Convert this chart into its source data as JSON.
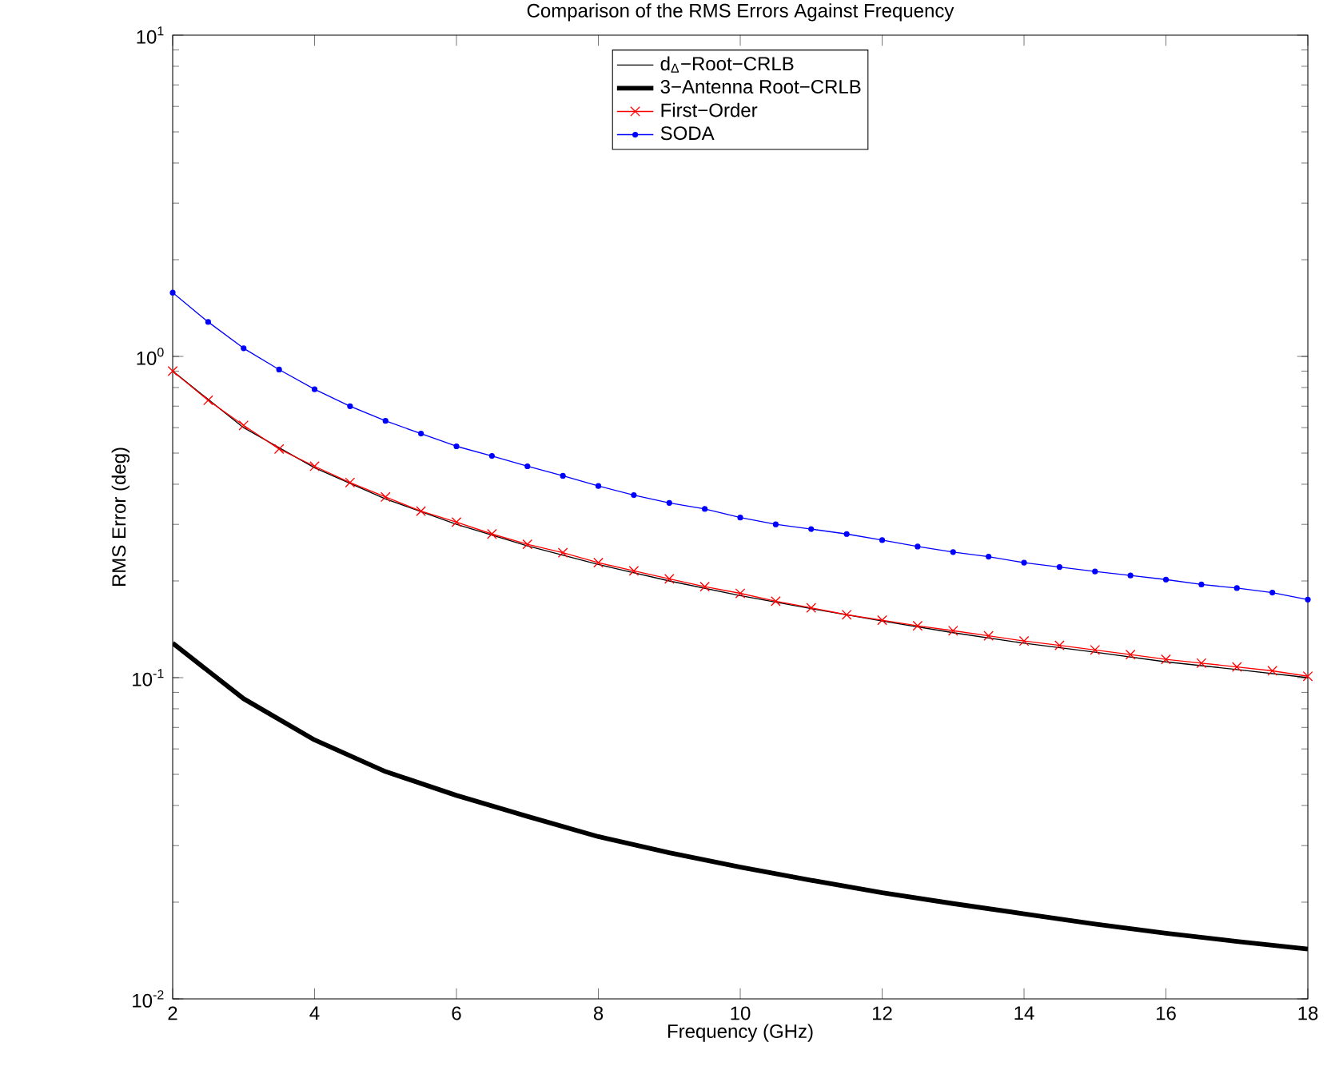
{
  "chart_data": {
    "type": "line",
    "title": "Comparison of the RMS Errors Against Frequency",
    "xlabel": "Frequency (GHz)",
    "ylabel": "RMS Error (deg)",
    "log": "y",
    "grid": false,
    "legend": "top",
    "xlim": [
      2,
      18
    ],
    "xticks": [
      2,
      4,
      6,
      8,
      10,
      12,
      14,
      16,
      18
    ],
    "ylim": [
      0.01,
      10
    ],
    "yticks": [
      {
        "value": 0.01,
        "label": "10$^{-2}$"
      },
      {
        "value": 0.1,
        "label": "10$^{-1}$"
      },
      {
        "value": 1,
        "label": "10$^{0}$"
      },
      {
        "value": 10,
        "label": "10$^{1}$"
      }
    ],
    "series": [
      {
        "name": "d$_{Δ}$−Root−CRLB",
        "color": "#000000",
        "marker": "none",
        "x": [
          2,
          3,
          4,
          5,
          6,
          7,
          8,
          9,
          10,
          11,
          12,
          13,
          14,
          15,
          16,
          17,
          18
        ],
        "values": [
          0.9,
          0.6,
          0.45,
          0.36,
          0.3,
          0.257,
          0.225,
          0.2,
          0.18,
          0.164,
          0.15,
          0.138,
          0.128,
          0.12,
          0.112,
          0.106,
          0.1
        ]
      },
      {
        "name": "3−Antenna Root−CRLB",
        "color": "#000000",
        "marker": "none",
        "x": [
          2,
          3,
          4,
          5,
          6,
          7,
          8,
          9,
          10,
          11,
          12,
          13,
          14,
          15,
          16,
          17,
          18
        ],
        "values": [
          0.128,
          0.086,
          0.064,
          0.051,
          0.043,
          0.037,
          0.032,
          0.0285,
          0.0257,
          0.0234,
          0.0214,
          0.0198,
          0.0184,
          0.0171,
          0.016,
          0.0151,
          0.0143
        ]
      },
      {
        "name": "First−Order",
        "color": "#ff0000",
        "marker": "cross",
        "x": [
          2,
          2.5,
          3,
          3.5,
          4,
          4.5,
          5,
          5.5,
          6,
          6.5,
          7,
          7.5,
          8,
          8.5,
          9,
          9.5,
          10,
          10.5,
          11,
          11.5,
          12,
          12.5,
          13,
          13.5,
          14,
          14.5,
          15,
          15.5,
          16,
          16.5,
          17,
          17.5,
          18
        ],
        "values": [
          0.9,
          0.73,
          0.61,
          0.515,
          0.455,
          0.405,
          0.365,
          0.33,
          0.305,
          0.28,
          0.26,
          0.245,
          0.228,
          0.215,
          0.203,
          0.192,
          0.183,
          0.173,
          0.165,
          0.157,
          0.151,
          0.145,
          0.14,
          0.135,
          0.13,
          0.126,
          0.122,
          0.118,
          0.114,
          0.111,
          0.108,
          0.105,
          0.101
        ]
      },
      {
        "name": "SODA",
        "color": "#0000ff",
        "marker": "circle",
        "x": [
          2,
          2.5,
          3,
          3.5,
          4,
          4.5,
          5,
          5.5,
          6,
          6.5,
          7,
          7.5,
          8,
          8.5,
          9,
          9.5,
          10,
          10.5,
          11,
          11.5,
          12,
          12.5,
          13,
          13.5,
          14,
          14.5,
          15,
          15.5,
          16,
          16.5,
          17,
          17.5,
          18
        ],
        "values": [
          1.58,
          1.28,
          1.06,
          0.91,
          0.79,
          0.7,
          0.63,
          0.575,
          0.525,
          0.49,
          0.455,
          0.425,
          0.395,
          0.37,
          0.35,
          0.335,
          0.315,
          0.3,
          0.29,
          0.28,
          0.268,
          0.256,
          0.246,
          0.238,
          0.228,
          0.221,
          0.214,
          0.208,
          0.202,
          0.195,
          0.19,
          0.184,
          0.175
        ]
      }
    ]
  }
}
